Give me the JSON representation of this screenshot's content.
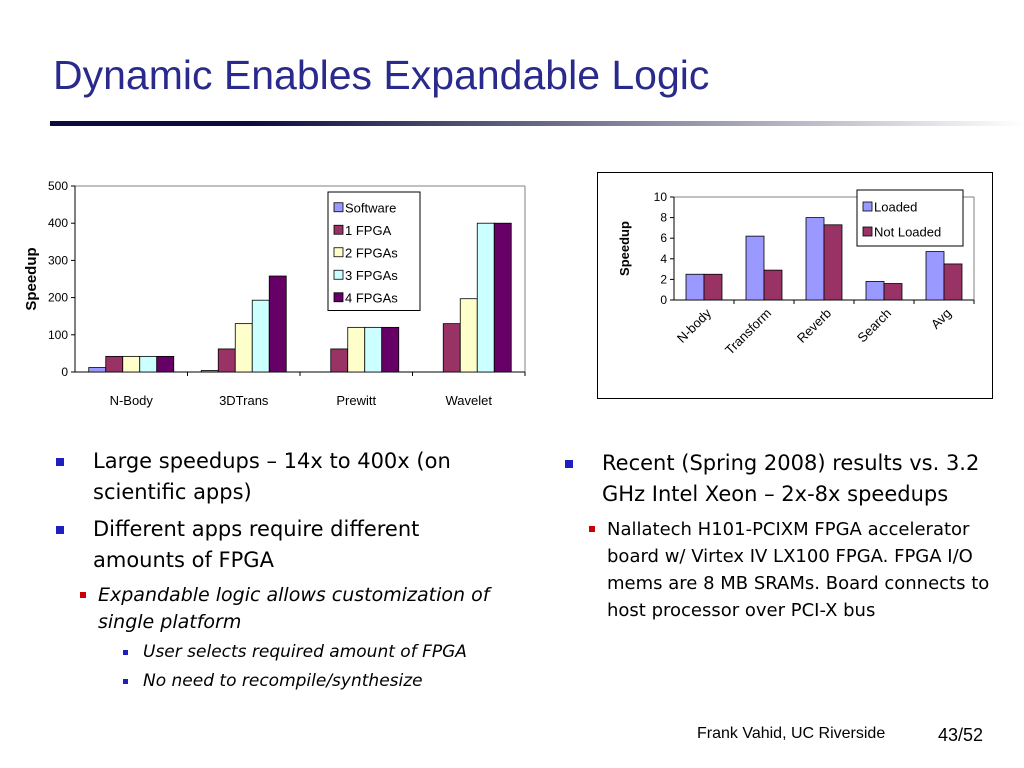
{
  "title": "Dynamic Enables Expandable Logic",
  "footer": {
    "author": "Frank Vahid, UC Riverside",
    "page": "43/52"
  },
  "left_bullets": [
    {
      "level": 1,
      "text": "Large speedups – 14x to 400x (on scientific apps)"
    },
    {
      "level": 1,
      "text": "Different apps require different amounts of FPGA"
    },
    {
      "level": 2,
      "text": "Expandable logic allows customization of single platform"
    },
    {
      "level": 3,
      "text": "User selects required amount of FPGA"
    },
    {
      "level": 3,
      "text": "No need to recompile/synthesize"
    }
  ],
  "right_bullets": [
    {
      "level": 1,
      "text": "Recent (Spring 2008) results vs. 3.2 GHz Intel Xeon – 2x-8x speedups"
    },
    {
      "level": 2,
      "text": "Nallatech H101-PCIXM FPGA accelerator board w/ Virtex IV LX100 FPGA. FPGA I/O mems are 8 MB SRAMs. Board connects to host processor over PCI-X bus"
    }
  ],
  "chart_data": [
    {
      "type": "bar",
      "ylabel": "Speedup",
      "ylim": [
        0,
        500
      ],
      "yticks": [
        "0",
        "100",
        "200",
        "300",
        "400",
        "500"
      ],
      "categories": [
        "N-Body",
        "3DTrans",
        "Prewitt",
        "Wavelet"
      ],
      "legend_position": "top-right inside",
      "series": [
        {
          "name": "Software",
          "color": "#9999ff",
          "values": [
            12,
            4,
            0,
            0
          ]
        },
        {
          "name": "1 FPGA",
          "color": "#993366",
          "values": [
            42,
            62,
            62,
            130
          ]
        },
        {
          "name": "2 FPGAs",
          "color": "#ffffcc",
          "values": [
            42,
            130,
            120,
            197
          ]
        },
        {
          "name": "3 FPGAs",
          "color": "#ccffff",
          "values": [
            42,
            193,
            120,
            400
          ]
        },
        {
          "name": "4 FPGAs",
          "color": "#660066",
          "values": [
            42,
            258,
            120,
            400
          ]
        }
      ]
    },
    {
      "type": "bar",
      "ylabel": "Speedup",
      "ylim": [
        0,
        10
      ],
      "yticks": [
        "0",
        "2",
        "4",
        "6",
        "8",
        "10"
      ],
      "categories": [
        "N-body",
        "Transform",
        "Reverb",
        "Search",
        "Avg"
      ],
      "legend_position": "top-right inside",
      "series": [
        {
          "name": "Loaded",
          "color": "#9999ff",
          "values": [
            2.5,
            6.2,
            8.0,
            1.8,
            4.7
          ]
        },
        {
          "name": "Not Loaded",
          "color": "#993366",
          "values": [
            2.5,
            2.9,
            7.3,
            1.6,
            3.5
          ]
        }
      ]
    }
  ]
}
